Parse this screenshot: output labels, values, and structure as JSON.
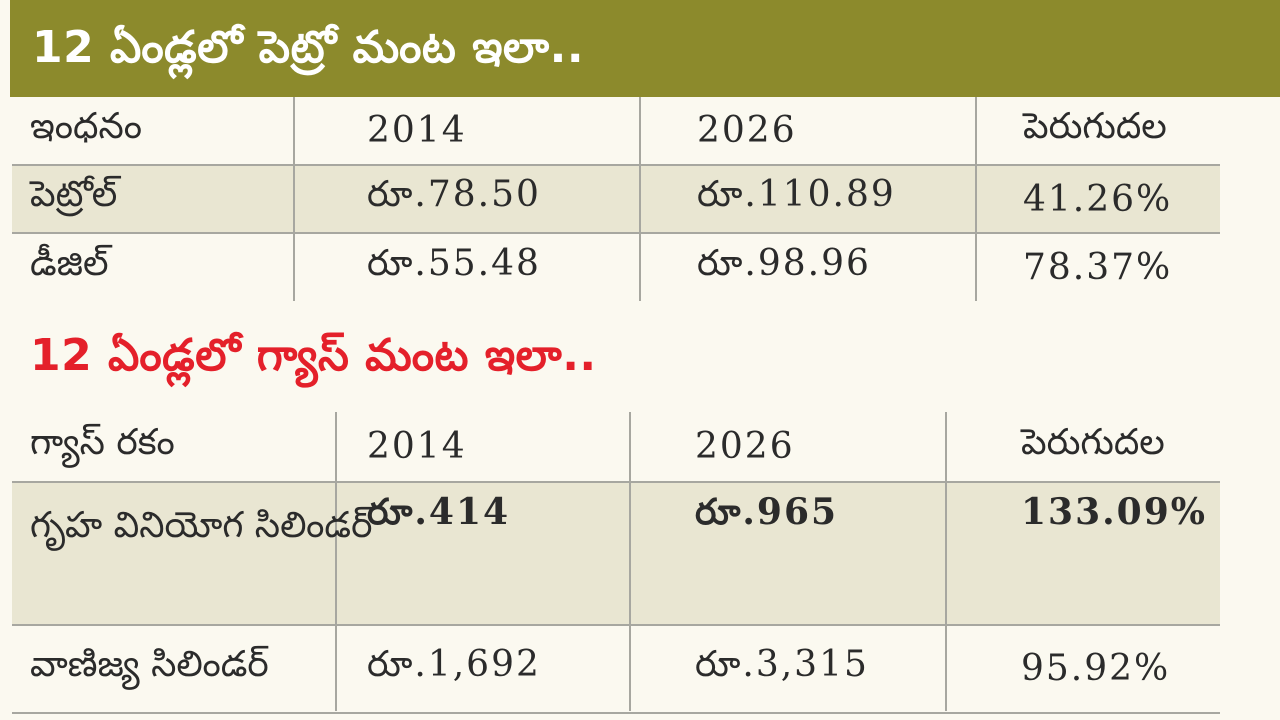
{
  "title1": "12 ఏండ్లలో పెట్రో మంట ఇలా..",
  "title2": "12 ఏండ్లలో గ్యాస్ మంట ఇలా..",
  "colors": {
    "banner": "#8c8a2c",
    "title2": "#e4202a",
    "shade": "#e9e6d2"
  },
  "fuel_table": {
    "headers": [
      "ఇంధనం",
      "2014",
      "2026",
      "పెరుగుదల"
    ],
    "rows": [
      [
        "పెట్రోల్",
        "రూ.78.50",
        "రూ.110.89",
        "41.26%"
      ],
      [
        "డీజిల్",
        "రూ.55.48",
        "రూ.98.96",
        "78.37%"
      ]
    ]
  },
  "gas_table": {
    "headers": [
      "గ్యాస్ రకం",
      "2014",
      "2026",
      "పెరుగుదల"
    ],
    "rows": [
      [
        "గృహ వినియోగ సిలిండర్",
        "రూ.414",
        "రూ.965",
        "133.09%"
      ],
      [
        "వాణిజ్య సిలిండర్",
        "రూ.1,692",
        "రూ.3,315",
        "95.92%"
      ]
    ]
  }
}
